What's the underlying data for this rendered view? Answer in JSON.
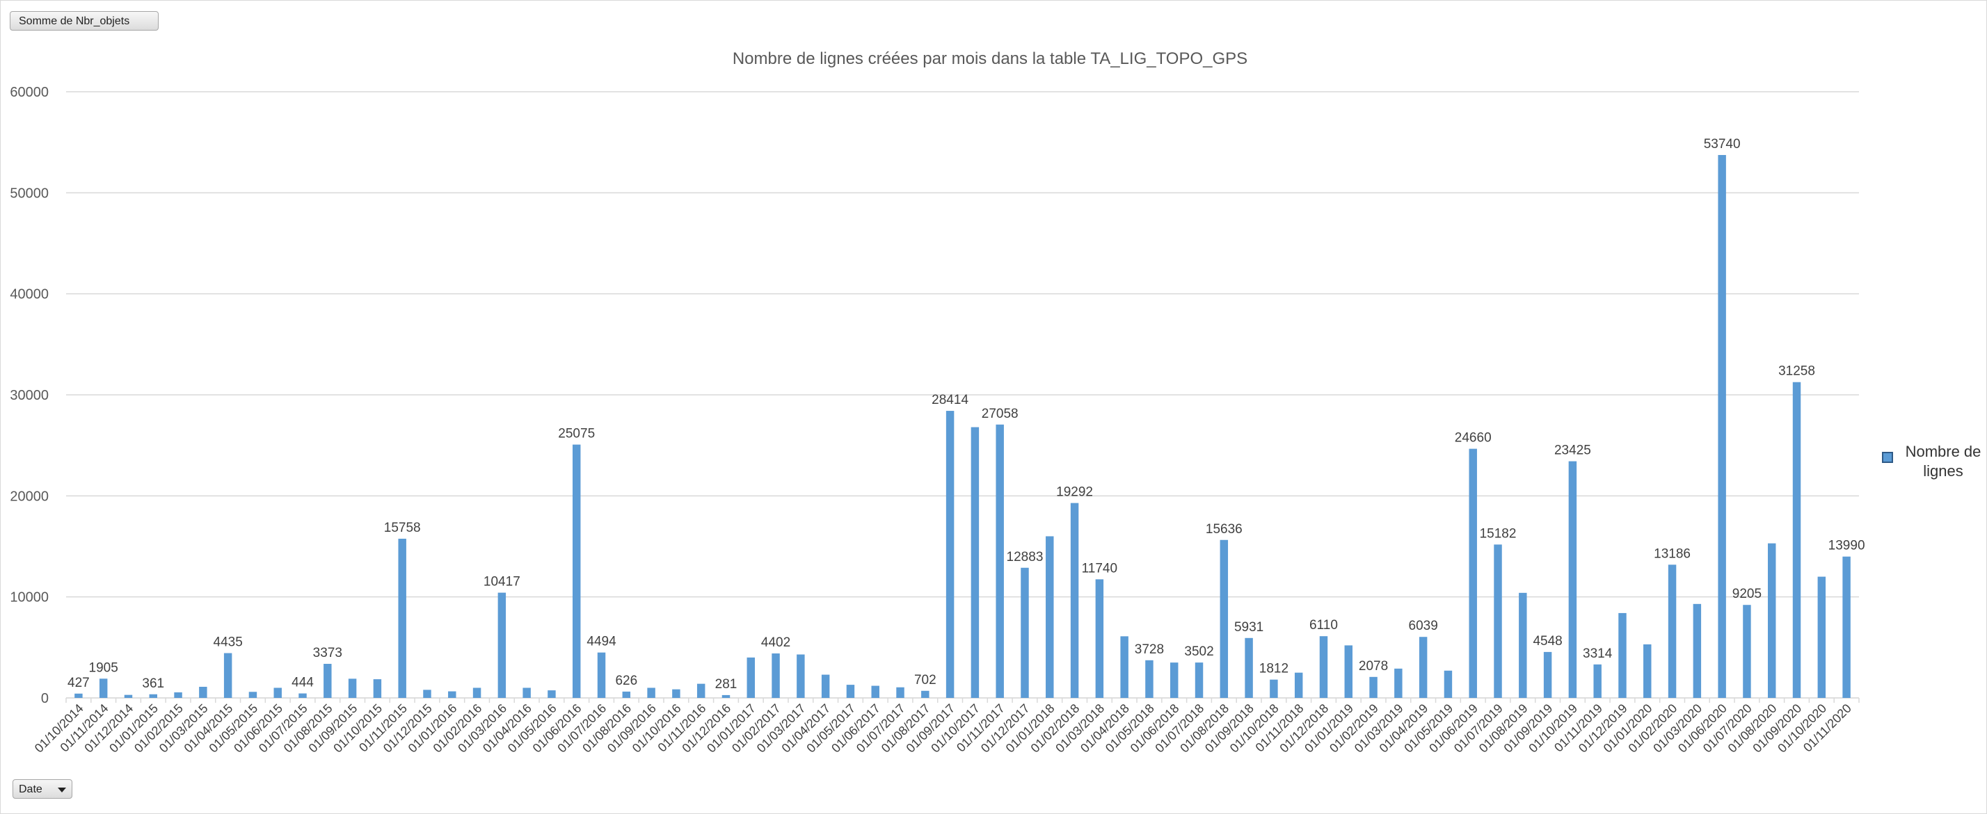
{
  "pivot": {
    "value_field_label": "Somme de Nbr_objets",
    "axis_field_label": "Date"
  },
  "colors": {
    "bar": "#5b9bd5",
    "grid": "#d9d9d9",
    "text": "#595959"
  },
  "chart_data": {
    "type": "bar",
    "title": "Nombre de lignes créées par mois dans la table TA_LIG_TOPO_GPS",
    "xlabel": "",
    "ylabel": "",
    "ylim": [
      0,
      60000
    ],
    "yticks": [
      0,
      10000,
      20000,
      30000,
      40000,
      50000,
      60000
    ],
    "grid": true,
    "legend_position": "right",
    "categories": [
      "01/10/2014",
      "01/11/2014",
      "01/12/2014",
      "01/01/2015",
      "01/02/2015",
      "01/03/2015",
      "01/04/2015",
      "01/05/2015",
      "01/06/2015",
      "01/07/2015",
      "01/08/2015",
      "01/09/2015",
      "01/10/2015",
      "01/11/2015",
      "01/12/2015",
      "01/01/2016",
      "01/02/2016",
      "01/03/2016",
      "01/04/2016",
      "01/05/2016",
      "01/06/2016",
      "01/07/2016",
      "01/08/2016",
      "01/09/2016",
      "01/10/2016",
      "01/11/2016",
      "01/12/2016",
      "01/01/2017",
      "01/02/2017",
      "01/03/2017",
      "01/04/2017",
      "01/05/2017",
      "01/06/2017",
      "01/07/2017",
      "01/08/2017",
      "01/09/2017",
      "01/10/2017",
      "01/11/2017",
      "01/12/2017",
      "01/01/2018",
      "01/02/2018",
      "01/03/2018",
      "01/04/2018",
      "01/05/2018",
      "01/06/2018",
      "01/07/2018",
      "01/08/2018",
      "01/09/2018",
      "01/10/2018",
      "01/11/2018",
      "01/12/2018",
      "01/01/2019",
      "01/02/2019",
      "01/03/2019",
      "01/04/2019",
      "01/05/2019",
      "01/06/2019",
      "01/07/2019",
      "01/08/2019",
      "01/09/2019",
      "01/10/2019",
      "01/11/2019",
      "01/12/2019",
      "01/01/2020",
      "01/02/2020",
      "01/03/2020",
      "01/06/2020",
      "01/07/2020",
      "01/08/2020",
      "01/09/2020",
      "01/10/2020",
      "01/11/2020"
    ],
    "series": [
      {
        "name": "Nombre de lignes",
        "values": [
          427,
          1905,
          300,
          361,
          550,
          1100,
          4435,
          600,
          1000,
          444,
          3373,
          1900,
          1850,
          15758,
          800,
          650,
          1000,
          10417,
          1000,
          750,
          25075,
          4494,
          626,
          1000,
          850,
          1400,
          281,
          4000,
          4402,
          4300,
          2300,
          1300,
          1200,
          1050,
          702,
          28414,
          26800,
          27058,
          12883,
          16000,
          19292,
          11740,
          6100,
          3728,
          3500,
          3502,
          15636,
          5931,
          1812,
          2500,
          6110,
          5200,
          2078,
          2900,
          6039,
          2700,
          24660,
          15182,
          10400,
          4548,
          23425,
          3314,
          8400,
          5300,
          13186,
          9300,
          53740,
          9205,
          15300,
          31258,
          12000,
          13990
        ]
      }
    ],
    "labeled": [
      0,
      1,
      3,
      6,
      9,
      10,
      13,
      17,
      20,
      21,
      22,
      26,
      28,
      34,
      35,
      37,
      38,
      40,
      41,
      43,
      45,
      46,
      47,
      48,
      50,
      52,
      54,
      56,
      57,
      59,
      60,
      61,
      64,
      66,
      67,
      69,
      71
    ]
  }
}
